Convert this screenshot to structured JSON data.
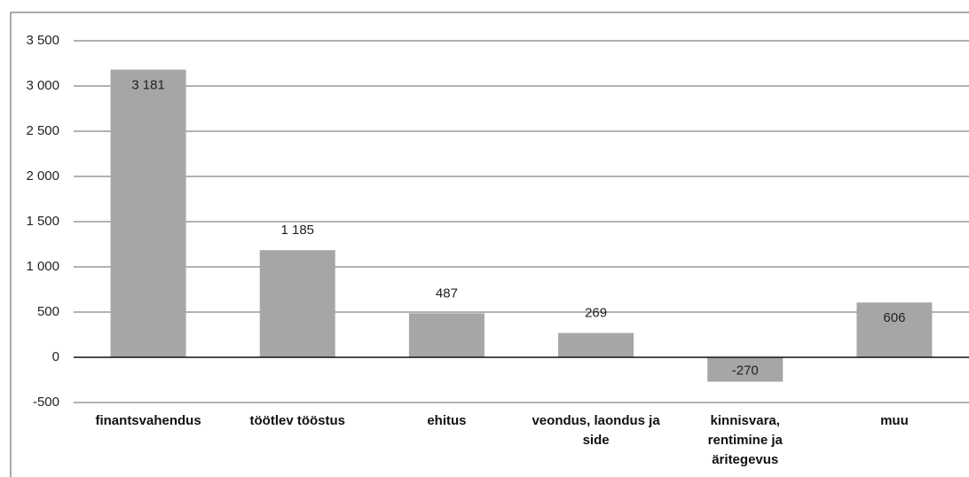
{
  "chart_data": {
    "type": "bar",
    "categories": [
      "finantsvahendus",
      "töötlev tööstus",
      "ehitus",
      "veondus, laondus ja side",
      "kinnisvara, rentimine ja äritegevus",
      "muu"
    ],
    "values": [
      3181,
      1185,
      487,
      269,
      -270,
      606
    ],
    "value_labels": [
      "3 181",
      "1 185",
      "487",
      "269",
      "-270",
      "606"
    ],
    "color": "#a6a6a6",
    "ylim": [
      -500,
      3500
    ],
    "yticks": [
      -500,
      0,
      500,
      {
        "value": 1000,
        "label": "1 000"
      },
      {
        "value": 1500,
        "label": "1 500"
      },
      {
        "value": 2000,
        "label": "2 000"
      },
      {
        "value": 2500,
        "label": "2 500"
      },
      {
        "value": 3000,
        "label": "3 000"
      },
      {
        "value": 3500,
        "label": "3 500"
      }
    ],
    "grid": true
  }
}
